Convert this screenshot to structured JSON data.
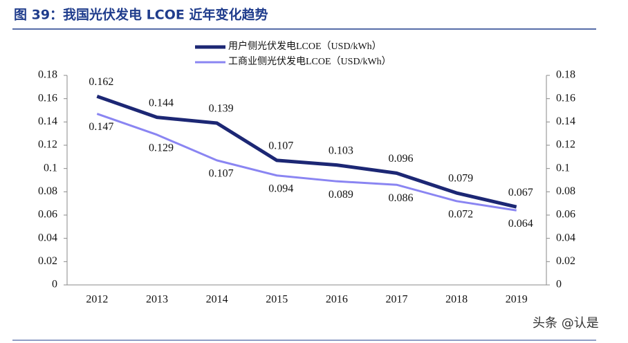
{
  "chart_data": {
    "type": "line",
    "title": "图 39：我国光伏发电 LCOE 近年变化趋势",
    "categories": [
      "2012",
      "2013",
      "2014",
      "2015",
      "2016",
      "2017",
      "2018",
      "2019"
    ],
    "series": [
      {
        "name": "用户侧光伏发电LCOE（USD/kWh）",
        "color": "#1c2774",
        "values": [
          0.162,
          0.144,
          0.139,
          0.107,
          0.103,
          0.096,
          0.079,
          0.067
        ]
      },
      {
        "name": "工商业侧光伏发电LCOE（USD/kWh）",
        "color": "#8a85f2",
        "values": [
          0.147,
          0.129,
          0.107,
          0.094,
          0.089,
          0.086,
          0.072,
          0.064
        ]
      }
    ],
    "ylim": [
      0,
      0.18
    ],
    "yticks": [
      0,
      0.02,
      0.04,
      0.06,
      0.08,
      0.1,
      0.12,
      0.14,
      0.16,
      0.18
    ],
    "y2lim": [
      0,
      0.18
    ],
    "y2ticks": [
      0,
      0.02,
      0.04,
      0.06,
      0.08,
      0.1,
      0.12,
      0.14,
      0.16,
      0.18
    ],
    "legend": "top",
    "watermark": "头条 @认是"
  }
}
